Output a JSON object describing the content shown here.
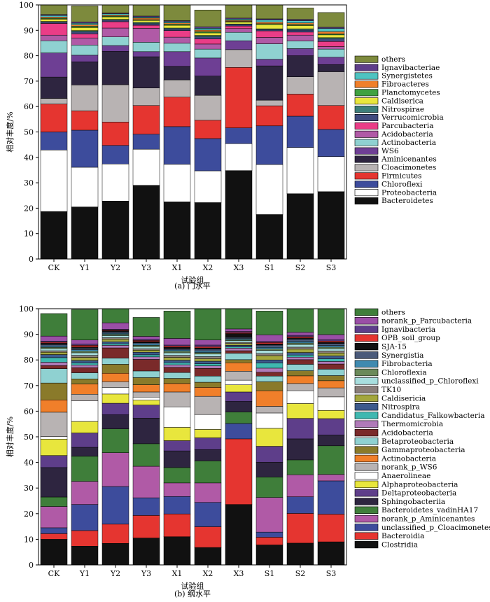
{
  "chart_data": [
    {
      "type": "bar",
      "stacked": true,
      "categories": [
        "CK",
        "Y1",
        "Y2",
        "Y3",
        "X1",
        "X2",
        "X3",
        "S1",
        "S2",
        "S3"
      ],
      "xlabel": "试验组",
      "ylabel": "相对丰度/%",
      "caption": "(a)  门水平",
      "ylim": [
        0,
        100
      ],
      "yticks": [
        0,
        10,
        20,
        30,
        40,
        50,
        60,
        70,
        80,
        90,
        100
      ],
      "series": [
        {
          "name": "Bacteroidetes",
          "color": "#111111",
          "values": [
            18.7,
            20.5,
            22.8,
            29.0,
            22.5,
            22.2,
            34.8,
            17.5,
            25.7,
            26.5
          ]
        },
        {
          "name": "Proteobacteria",
          "color": "#ffffff",
          "values": [
            24.2,
            15.6,
            14.6,
            14.2,
            14.8,
            12.5,
            10.6,
            19.7,
            18.2,
            13.8
          ]
        },
        {
          "name": "Chloroflexi",
          "color": "#3d4c9c",
          "values": [
            7.1,
            14.6,
            7.3,
            5.9,
            14.8,
            12.7,
            6.2,
            15.2,
            12.3,
            10.7
          ]
        },
        {
          "name": "Firmicutes",
          "color": "#e53530",
          "values": [
            11.0,
            7.6,
            9.2,
            11.3,
            11.6,
            7.2,
            23.8,
            7.9,
            8.7,
            9.4
          ]
        },
        {
          "name": "Cloacimonetes",
          "color": "#b8b3b3",
          "values": [
            2.2,
            10.2,
            14.7,
            6.9,
            6.8,
            9.8,
            7.0,
            2.2,
            6.8,
            13.3
          ]
        },
        {
          "name": "Aminicenantes",
          "color": "#2e2540",
          "values": [
            8.4,
            9.1,
            13.1,
            12.3,
            5.3,
            7.6,
            0.0,
            13.5,
            8.3,
            2.8
          ]
        },
        {
          "name": "WS6",
          "color": "#6e3f94",
          "values": [
            9.5,
            2.6,
            2.3,
            2.0,
            5.8,
            7.1,
            3.5,
            2.6,
            2.8,
            2.9
          ]
        },
        {
          "name": "Actinobacteria",
          "color": "#8fd1d1",
          "values": [
            4.8,
            4.0,
            3.4,
            3.7,
            3.3,
            3.5,
            3.3,
            6.1,
            3.0,
            3.2
          ]
        },
        {
          "name": "Acidobacteria",
          "color": "#b05aa6",
          "values": [
            2.2,
            2.8,
            3.5,
            5.5,
            2.4,
            2.0,
            1.5,
            2.5,
            2.3,
            1.0
          ]
        },
        {
          "name": "Parcubacteria",
          "color": "#ea3d87",
          "values": [
            4.6,
            1.6,
            2.5,
            1.2,
            2.6,
            2.0,
            1.0,
            2.6,
            1.2,
            2.0
          ]
        },
        {
          "name": "Verrucomicrobia",
          "color": "#3f4a7e",
          "values": [
            0.5,
            0.8,
            0.6,
            0.6,
            0.6,
            0.8,
            0.5,
            0.5,
            0.8,
            1.0
          ]
        },
        {
          "name": "Nitrospirae",
          "color": "#3d7e7a",
          "values": [
            0.3,
            0.5,
            0.3,
            0.5,
            0.4,
            0.6,
            0.3,
            0.3,
            0.5,
            0.5
          ]
        },
        {
          "name": "Caldiserica",
          "color": "#e8e63d",
          "values": [
            0.9,
            1.2,
            1.0,
            0.8,
            1.1,
            1.0,
            0.7,
            1.7,
            1.3,
            1.1
          ]
        },
        {
          "name": "Planctomycetes",
          "color": "#3fa141",
          "values": [
            0.3,
            0.5,
            0.3,
            0.3,
            0.4,
            0.5,
            0.3,
            0.3,
            0.4,
            0.4
          ]
        },
        {
          "name": "Fibroacteres",
          "color": "#f07f2a",
          "values": [
            0.5,
            0.6,
            0.4,
            0.6,
            0.5,
            0.6,
            0.4,
            0.6,
            0.6,
            0.9
          ]
        },
        {
          "name": "Synergistetes",
          "color": "#4fc3c1",
          "values": [
            0.6,
            0.6,
            0.5,
            0.4,
            0.5,
            0.7,
            0.5,
            0.9,
            0.9,
            1.2
          ]
        },
        {
          "name": "Ignavibacteriae",
          "color": "#5e3e8a",
          "values": [
            0.4,
            0.5,
            0.3,
            0.4,
            0.4,
            0.6,
            0.4,
            0.4,
            0.5,
            0.5
          ]
        },
        {
          "name": "others",
          "color": "#7d8a3d",
          "values": [
            3.8,
            6.3,
            3.2,
            4.4,
            6.2,
            6.6,
            5.2,
            5.5,
            4.5,
            5.8
          ]
        }
      ]
    },
    {
      "type": "bar",
      "stacked": true,
      "categories": [
        "CK",
        "Y1",
        "Y2",
        "Y3",
        "X1",
        "X2",
        "X3",
        "S1",
        "S2",
        "S3"
      ],
      "xlabel": "试验组",
      "ylabel": "相对丰度/%",
      "caption": "(b)  纲水平",
      "ylim": [
        0,
        100
      ],
      "yticks": [
        0,
        10,
        20,
        30,
        40,
        50,
        60,
        70,
        80,
        90,
        100
      ],
      "series": [
        {
          "name": "Clostridia",
          "color": "#111111",
          "values": [
            10.0,
            7.3,
            8.4,
            10.5,
            11.0,
            6.8,
            23.6,
            7.8,
            8.5,
            9.0
          ]
        },
        {
          "name": "Bacteroidia",
          "color": "#e53530",
          "values": [
            2.2,
            6.1,
            7.5,
            8.8,
            8.9,
            8.1,
            25.6,
            3.0,
            11.6,
            10.8
          ]
        },
        {
          "name": "unclassified_p_Cloacimonetes",
          "color": "#3d4c9c",
          "values": [
            2.3,
            10.2,
            14.7,
            6.9,
            6.8,
            9.5,
            6.0,
            2.0,
            6.5,
            13.0
          ]
        },
        {
          "name": "norank_p_Aminicenantes",
          "color": "#b05aa6",
          "values": [
            8.3,
            9.0,
            13.2,
            12.3,
            5.3,
            7.6,
            0.0,
            13.5,
            8.6,
            2.5
          ]
        },
        {
          "name": "Bacteroidetes_vadinHA17",
          "color": "#3f7e3a",
          "values": [
            3.7,
            9.8,
            9.3,
            8.8,
            6.0,
            8.6,
            4.5,
            8.0,
            5.8,
            11.2
          ]
        },
        {
          "name": "Sphingobacteriia",
          "color": "#2e2540",
          "values": [
            11.5,
            3.5,
            5.5,
            10.0,
            6.5,
            4.4,
            4.1,
            5.8,
            8.2,
            4.2
          ]
        },
        {
          "name": "Deltaproteobacteria",
          "color": "#5e3e8a",
          "values": [
            4.7,
            5.6,
            4.5,
            5.1,
            4.0,
            4.6,
            3.7,
            6.2,
            8.0,
            6.4
          ]
        },
        {
          "name": "Alphaproteobacteria",
          "color": "#e8e63d",
          "values": [
            6.4,
            4.5,
            3.6,
            1.9,
            5.2,
            3.3,
            2.8,
            7.0,
            5.8,
            3.2
          ]
        },
        {
          "name": "Anaerolineae",
          "color": "#ffffff",
          "values": [
            1.0,
            8.0,
            2.5,
            1.2,
            8.0,
            5.8,
            1.8,
            6.0,
            5.0,
            5.3
          ]
        },
        {
          "name": "norank_p_WS6",
          "color": "#b8b3b3",
          "values": [
            9.5,
            2.6,
            2.3,
            2.0,
            5.8,
            7.1,
            3.5,
            2.6,
            2.8,
            3.5
          ]
        },
        {
          "name": "Actinobacteria",
          "color": "#f07f2a",
          "values": [
            4.8,
            4.0,
            3.3,
            2.8,
            3.3,
            3.5,
            3.3,
            6.1,
            3.0,
            2.8
          ]
        },
        {
          "name": "Gammaproteobacteria",
          "color": "#8a7a2a",
          "values": [
            6.6,
            2.0,
            3.5,
            2.8,
            2.0,
            2.0,
            1.2,
            3.5,
            2.0,
            2.0
          ]
        },
        {
          "name": "Betaproteobacteria",
          "color": "#8fd1d1",
          "values": [
            5.6,
            2.4,
            2.4,
            2.6,
            2.3,
            2.4,
            2.5,
            2.2,
            2.5,
            2.5
          ]
        },
        {
          "name": "Acidobacteria",
          "color": "#7a2a2a",
          "values": [
            1.2,
            2.0,
            4.0,
            4.5,
            2.0,
            3.0,
            1.0,
            1.5,
            1.8,
            2.0
          ]
        },
        {
          "name": "Thermomicrobia",
          "color": "#b07ab8",
          "values": [
            1.3,
            1.0,
            1.0,
            1.0,
            1.0,
            1.0,
            1.0,
            1.6,
            1.0,
            1.0
          ]
        },
        {
          "name": "Candidatus_Falkowbacteria",
          "color": "#3fb8b0",
          "values": [
            1.8,
            0.8,
            0.6,
            0.8,
            0.8,
            0.8,
            0.5,
            2.0,
            0.8,
            1.0
          ]
        },
        {
          "name": "Nitrospira",
          "color": "#3d5a8c",
          "values": [
            1.2,
            1.0,
            0.8,
            1.0,
            1.0,
            1.0,
            0.6,
            1.2,
            1.0,
            1.2
          ]
        },
        {
          "name": "Caldisericia",
          "color": "#a3a63d",
          "values": [
            0.9,
            1.2,
            1.0,
            0.8,
            1.1,
            1.0,
            0.7,
            1.7,
            1.3,
            1.1
          ]
        },
        {
          "name": "TK10",
          "color": "#8a7e7a",
          "values": [
            0.6,
            0.8,
            0.6,
            0.6,
            0.8,
            0.8,
            0.5,
            0.8,
            0.8,
            0.8
          ]
        },
        {
          "name": "unclassified_p_Chloroflexi",
          "color": "#a8dede",
          "values": [
            0.8,
            1.0,
            0.8,
            0.8,
            1.0,
            1.0,
            0.6,
            1.2,
            1.0,
            0.9
          ]
        },
        {
          "name": "Chloroflexia",
          "color": "#6b8a5a",
          "values": [
            0.5,
            0.6,
            0.5,
            0.5,
            0.6,
            0.6,
            0.4,
            0.6,
            0.6,
            0.6
          ]
        },
        {
          "name": "Fibrobacteria",
          "color": "#3f8ab0",
          "values": [
            0.5,
            0.6,
            0.4,
            0.6,
            0.5,
            0.6,
            0.4,
            0.6,
            0.6,
            0.6
          ]
        },
        {
          "name": "Synergistia",
          "color": "#4a5a7a",
          "values": [
            0.6,
            0.6,
            0.5,
            0.4,
            0.5,
            0.7,
            0.5,
            0.9,
            0.9,
            0.8
          ]
        },
        {
          "name": "SJA-15",
          "color": "#111111",
          "values": [
            0.5,
            0.5,
            0.5,
            0.5,
            0.5,
            0.5,
            1.5,
            0.5,
            0.5,
            0.5
          ]
        },
        {
          "name": "OPB_soil_group",
          "color": "#e53530",
          "values": [
            0.4,
            0.6,
            0.3,
            0.4,
            0.5,
            0.5,
            0.4,
            0.5,
            0.5,
            0.5
          ]
        },
        {
          "name": "Ignavibacteria",
          "color": "#5e3e8a",
          "values": [
            0.4,
            0.5,
            0.3,
            0.4,
            0.4,
            0.6,
            0.4,
            0.4,
            0.5,
            0.5
          ]
        },
        {
          "name": "norank_p_Parcubacteria",
          "color": "#9a4fa6",
          "values": [
            2.0,
            1.6,
            2.5,
            1.2,
            2.6,
            2.0,
            1.0,
            2.6,
            1.2,
            2.0
          ]
        },
        {
          "name": "others",
          "color": "#3f7e3a",
          "values": [
            8.8,
            11.9,
            6.0,
            7.4,
            10.7,
            12.9,
            8.0,
            9.3,
            9.9,
            13.3
          ]
        }
      ]
    }
  ]
}
